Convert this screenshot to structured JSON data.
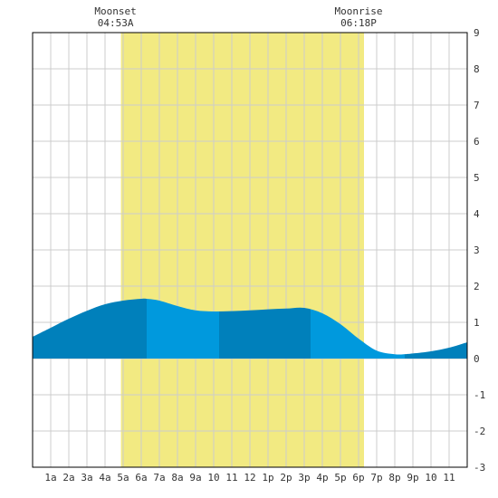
{
  "chart_data": {
    "type": "area",
    "title": "",
    "xlabel": "",
    "ylabel": "",
    "xlim": [
      0,
      24
    ],
    "ylim": [
      -3,
      9
    ],
    "grid": true,
    "x_tick_labels": [
      "1a",
      "2a",
      "3a",
      "4a",
      "5a",
      "6a",
      "7a",
      "8a",
      "9a",
      "10",
      "11",
      "12",
      "1p",
      "2p",
      "3p",
      "4p",
      "5p",
      "6p",
      "7p",
      "8p",
      "9p",
      "10",
      "11"
    ],
    "y_ticks": [
      -3,
      -2,
      -1,
      0,
      1,
      2,
      3,
      4,
      5,
      6,
      7,
      8,
      9
    ],
    "moonset": {
      "label": "Moonset",
      "time": "04:53A",
      "hour": 4.88
    },
    "moonrise": {
      "label": "Moonrise",
      "time": "06:18P",
      "hour": 18.3
    },
    "series": [
      {
        "x": [
          0,
          1,
          2,
          3,
          4,
          5,
          6,
          6.3,
          7,
          8,
          9,
          10,
          11,
          12,
          13,
          14,
          15,
          16,
          17,
          18,
          19,
          20,
          20.5,
          21,
          22,
          23,
          24
        ],
        "values": [
          0.6,
          0.85,
          1.1,
          1.32,
          1.5,
          1.6,
          1.65,
          1.65,
          1.6,
          1.45,
          1.33,
          1.3,
          1.31,
          1.33,
          1.36,
          1.38,
          1.4,
          1.25,
          0.95,
          0.55,
          0.22,
          0.12,
          0.12,
          0.14,
          0.2,
          0.3,
          0.45
        ]
      }
    ],
    "colors": {
      "daylight": "#f2ea82",
      "tide_dark": "#0080bb",
      "tide_light": "#0099dd",
      "grid": "#cccccc",
      "axis": "#000000"
    }
  }
}
